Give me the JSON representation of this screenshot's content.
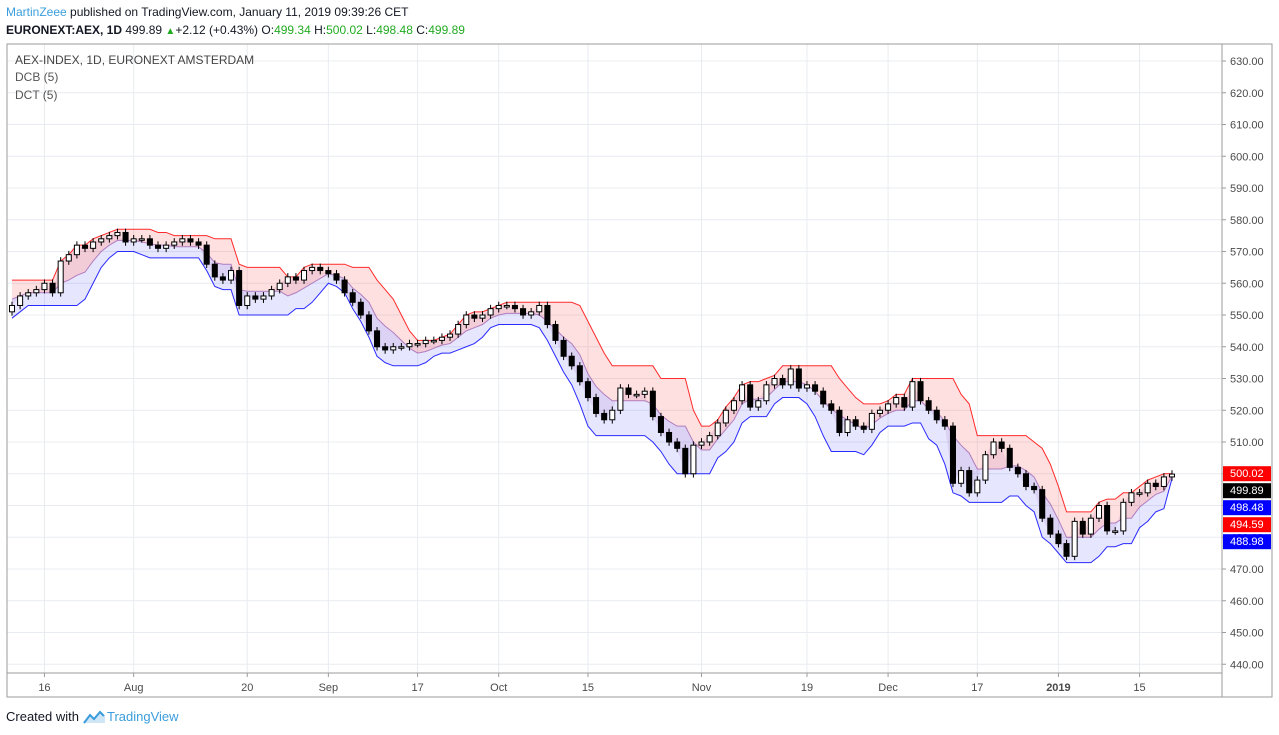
{
  "header": {
    "author": "MartinZeee",
    "published_text": " published on TradingView.com, January 11, 2019 09:39:26 CET",
    "symbol": "EURONEXT:AEX, 1D",
    "last": "499.89",
    "change": "+2.12 (+0.43%)",
    "o_label": "O:",
    "o_val": "499.34",
    "h_label": "H:",
    "h_val": "500.02",
    "l_label": "L:",
    "l_val": "498.48",
    "c_label": "C:",
    "c_val": "499.89"
  },
  "legend": {
    "title": "AEX-INDEX, 1D, EURONEXT AMSTERDAM",
    "dcb": "DCB (5)",
    "dct": "DCT (5)"
  },
  "footer": {
    "created_with": "Created with",
    "brand": "TradingView"
  },
  "colors": {
    "upper": "#ff2a2a",
    "lower": "#2a2aff",
    "upper_fill": "#ff000022",
    "lower_fill": "#3333ff22",
    "mid_fill": "#aa44aa22",
    "grid": "#e8ecf0",
    "candle": "#000000"
  },
  "chart_data": {
    "type": "candlestick",
    "title": "AEX-INDEX, 1D, EURONEXT AMSTERDAM",
    "ylim": [
      435,
      635
    ],
    "y_ticks": [
      440,
      450,
      460,
      470,
      480,
      490,
      500,
      510,
      520,
      530,
      540,
      550,
      560,
      570,
      580,
      590,
      600,
      610,
      620,
      630
    ],
    "x_ticks": [
      {
        "i": 4,
        "label": "16"
      },
      {
        "i": 15,
        "label": "Aug"
      },
      {
        "i": 29,
        "label": "20"
      },
      {
        "i": 39,
        "label": "Sep"
      },
      {
        "i": 50,
        "label": "17"
      },
      {
        "i": 60,
        "label": "Oct"
      },
      {
        "i": 71,
        "label": "15"
      },
      {
        "i": 85,
        "label": "Nov"
      },
      {
        "i": 98,
        "label": "19"
      },
      {
        "i": 108,
        "label": "Dec"
      },
      {
        "i": 119,
        "label": "17"
      },
      {
        "i": 129,
        "label": "2019"
      },
      {
        "i": 139,
        "label": "15"
      }
    ],
    "price_tags": [
      {
        "value": 500.02,
        "label": "500.02",
        "color": "#ff0000"
      },
      {
        "value": 499.89,
        "label": "499.89",
        "color": "#000000"
      },
      {
        "value": 498.48,
        "label": "498.48",
        "color": "#0000ff"
      },
      {
        "value": 494.59,
        "label": "494.59",
        "color": "#ff0000"
      },
      {
        "value": 488.98,
        "label": "488.98",
        "color": "#0000ff"
      }
    ],
    "closes": [
      553,
      556,
      557,
      558,
      560,
      557,
      567,
      569,
      572,
      571,
      573,
      574,
      575,
      576,
      573,
      574,
      574,
      572,
      571,
      572,
      573,
      574,
      573,
      572,
      566,
      562,
      561,
      564,
      553,
      556,
      555,
      556,
      558,
      560,
      562,
      561,
      564,
      565,
      564,
      563,
      561,
      557,
      554,
      550,
      545,
      540,
      539,
      540,
      540,
      541,
      541,
      542,
      542,
      543,
      544,
      547,
      550,
      549,
      550,
      552,
      553,
      553,
      552,
      550,
      551,
      553,
      547,
      542,
      537,
      534,
      529,
      524,
      519,
      517,
      520,
      527,
      525,
      525,
      526,
      518,
      513,
      510,
      508,
      500,
      509,
      510,
      512,
      516,
      520,
      523,
      528,
      521,
      523,
      528,
      530,
      528,
      533,
      527,
      528,
      526,
      522,
      520,
      513,
      517,
      515,
      514,
      519,
      520,
      522,
      524,
      521,
      529,
      523,
      520,
      517,
      515,
      497,
      501,
      494,
      498,
      506,
      510,
      508,
      502,
      500,
      496,
      495,
      486,
      481,
      478,
      474,
      485,
      481,
      486,
      490,
      482,
      482,
      491,
      494,
      494,
      497,
      496,
      499,
      499.89
    ],
    "upper_band": [
      561,
      561,
      561,
      561,
      561,
      561,
      567,
      569,
      572,
      572,
      574,
      575,
      576,
      577,
      577,
      577,
      577,
      577,
      576,
      576,
      575,
      575,
      575,
      575,
      575,
      574,
      574,
      574,
      566,
      565,
      565,
      565,
      565,
      565,
      562,
      562,
      565,
      566,
      566,
      566,
      566,
      566,
      565,
      565,
      565,
      561,
      558,
      555,
      550,
      545,
      542,
      542,
      542,
      543,
      544,
      547,
      550,
      551,
      551,
      552,
      553,
      554,
      554,
      554,
      554,
      554,
      554,
      554,
      554,
      554,
      553,
      548,
      543,
      538,
      534,
      534,
      534,
      534,
      534,
      534,
      530,
      530,
      530,
      530,
      520,
      515,
      515,
      517,
      521,
      524,
      528,
      529,
      529,
      530,
      531,
      534,
      534,
      534,
      534,
      534,
      534,
      534,
      530,
      527,
      524,
      522,
      522,
      522,
      523,
      525,
      525,
      530,
      530,
      530,
      530,
      530,
      530,
      525,
      522,
      512,
      512,
      512,
      512,
      512,
      512,
      512,
      510,
      508,
      503,
      496,
      488,
      488,
      488,
      488,
      491,
      492,
      492,
      494,
      494,
      496,
      498,
      499,
      500,
      500.02
    ],
    "lower_band": [
      549,
      551,
      553,
      553,
      553,
      553,
      553,
      553,
      553,
      555,
      560,
      565,
      568,
      570,
      570,
      570,
      569,
      568,
      568,
      568,
      568,
      568,
      568,
      568,
      564,
      559,
      558,
      558,
      550,
      550,
      550,
      550,
      550,
      550,
      550,
      552,
      552,
      554,
      557,
      560,
      559,
      557,
      552,
      548,
      543,
      537,
      535,
      534,
      534,
      534,
      534,
      535,
      537,
      538,
      538,
      539,
      540,
      541,
      543,
      546,
      547,
      547,
      547,
      547,
      547,
      546,
      542,
      537,
      532,
      528,
      522,
      515,
      512,
      512,
      512,
      512,
      512,
      512,
      512,
      510,
      507,
      503,
      500,
      500,
      500,
      500,
      500,
      505,
      507,
      510,
      516,
      518,
      518,
      518,
      522,
      524,
      524,
      524,
      522,
      518,
      512,
      507,
      507,
      507,
      507,
      506,
      509,
      513,
      515,
      515,
      515,
      516,
      516,
      511,
      509,
      503,
      494,
      493,
      491,
      491,
      491,
      491,
      491,
      493,
      493,
      490,
      488,
      480,
      478,
      475,
      472,
      472,
      472,
      472,
      474,
      477,
      477,
      478,
      478,
      483,
      485,
      488,
      489,
      498.48
    ]
  }
}
